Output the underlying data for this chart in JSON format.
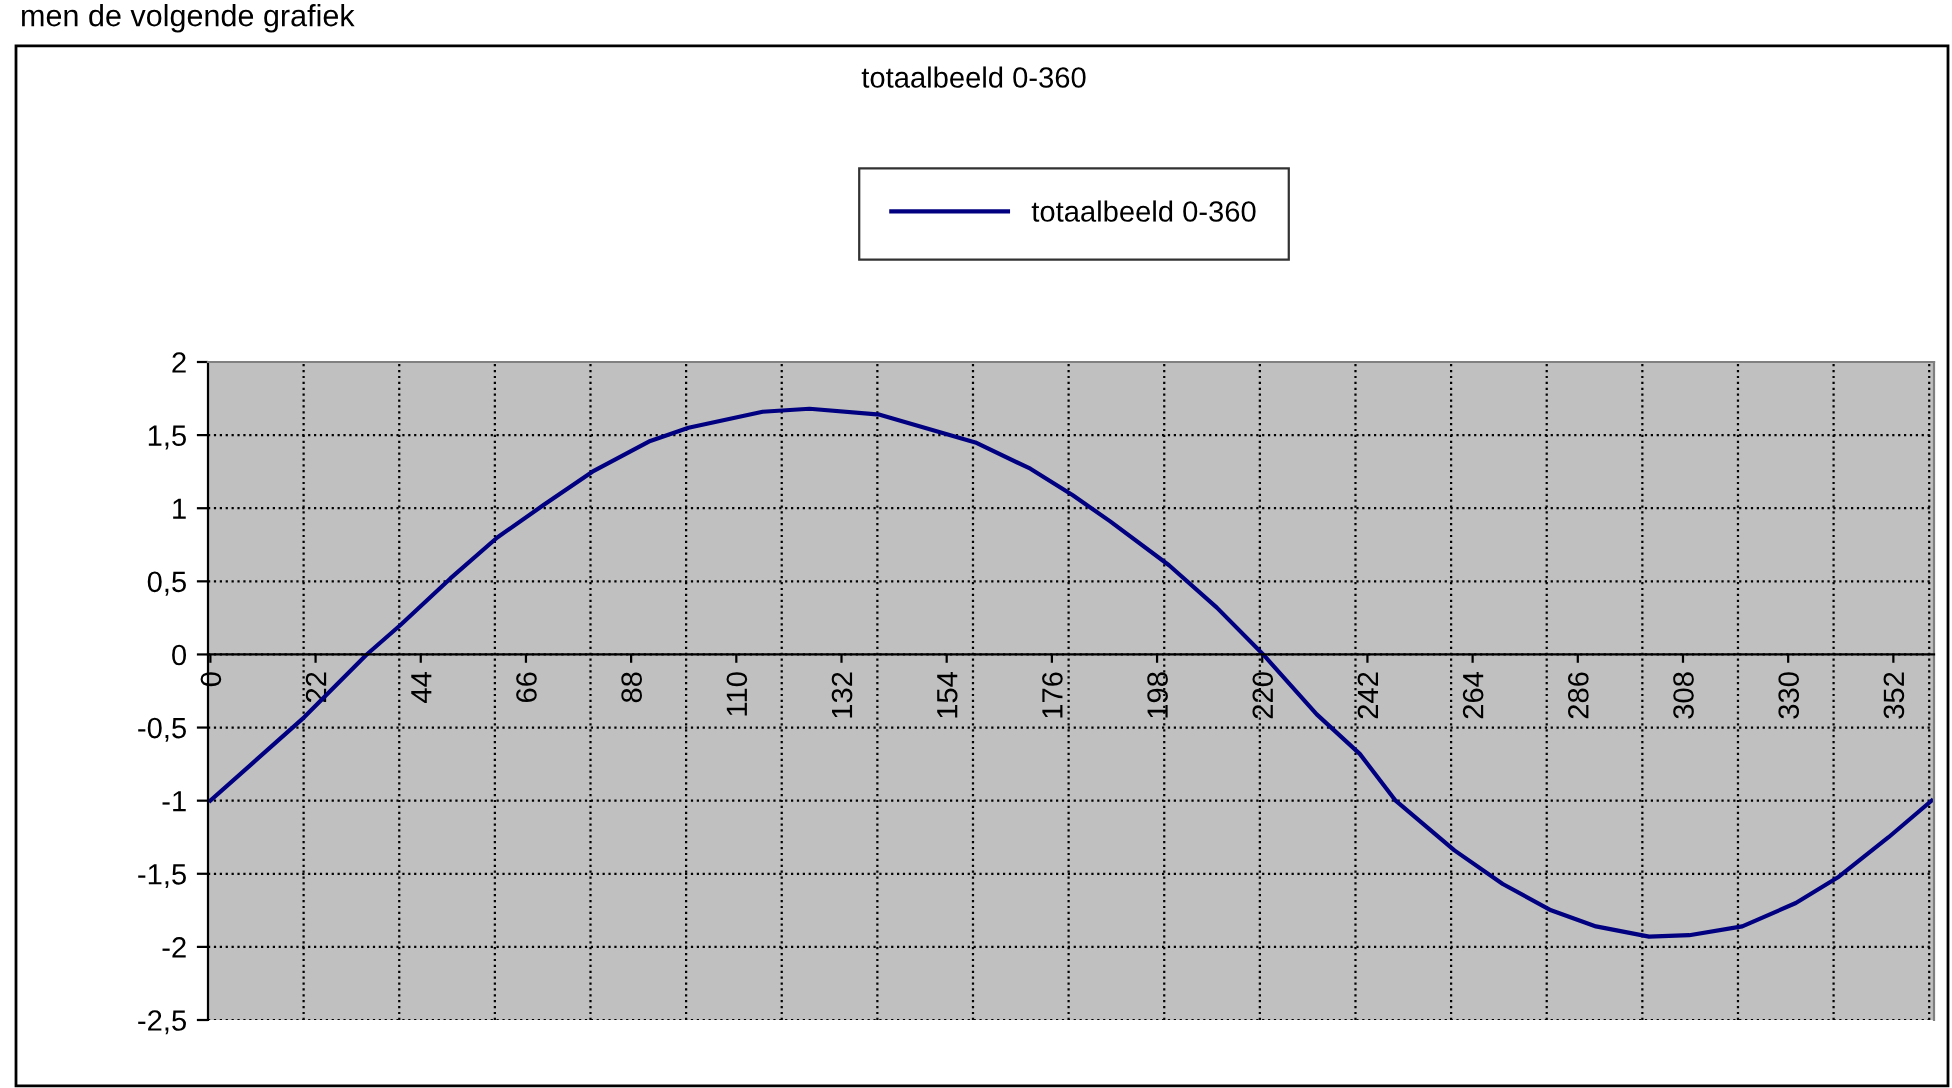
{
  "chart_data": {
    "type": "line",
    "title": "totaalbeeld 0-360",
    "annotations": [
      "men de volgende grafiek"
    ],
    "x": [
      0,
      19.6,
      32.7,
      39.7,
      50.2,
      60,
      69.6,
      79.9,
      92,
      100,
      115.5,
      125.3,
      140,
      160,
      171.5,
      180.3,
      188.2,
      200.5,
      210.5,
      220.2,
      231.4,
      240.4,
      247.9,
      260.2,
      270.3,
      280.4,
      289.8,
      300.9,
      309.3,
      320.4,
      331.6,
      340.6,
      351,
      360
    ],
    "series": [
      {
        "name": "totaalbeeld 0-360",
        "color": "#000080",
        "values": [
          -1.0,
          -0.43,
          0.0,
          0.2,
          0.52,
          0.8,
          1.02,
          1.25,
          1.46,
          1.55,
          1.66,
          1.68,
          1.64,
          1.45,
          1.27,
          1.09,
          0.91,
          0.61,
          0.32,
          0.0,
          -0.41,
          -0.68,
          -1.0,
          -1.34,
          -1.57,
          -1.75,
          -1.86,
          -1.93,
          -1.92,
          -1.86,
          -1.7,
          -1.52,
          -1.25,
          -1.0
        ]
      }
    ],
    "xlim": [
      -0.5,
      360.5
    ],
    "xticks": [
      0,
      {
        "value": 19.5,
        "label": null
      },
      22,
      {
        "value": 39.5,
        "label": null
      },
      44,
      {
        "value": 59.5,
        "label": null
      },
      66,
      {
        "value": 79.5,
        "label": null
      },
      88,
      {
        "value": 99.5,
        "label": null
      },
      110,
      {
        "value": 119.5,
        "label": null
      },
      132,
      {
        "value": 139.5,
        "label": null
      },
      154,
      {
        "value": 159.5,
        "label": null
      },
      176,
      {
        "value": 179.5,
        "label": null
      },
      198,
      {
        "value": 199.5,
        "label": null
      },
      220,
      {
        "value": 219.5,
        "label": null
      },
      242,
      {
        "value": 239.5,
        "label": null
      },
      264,
      {
        "value": 259.5,
        "label": null
      },
      286,
      {
        "value": 279.5,
        "label": null
      },
      308,
      {
        "value": 299.5,
        "label": null
      },
      330,
      {
        "value": 319.5,
        "label": null
      },
      {
        "value": 339.5,
        "label": null
      },
      352,
      {
        "value": 359.5,
        "label": null
      }
    ],
    "ylim": [
      -2.5,
      2
    ],
    "yticks": [
      {
        "value": -2.5,
        "label": "-2,5"
      },
      -2,
      {
        "value": -1.5,
        "label": "-1,5"
      },
      -1,
      {
        "value": -0.5,
        "label": "-0,5"
      },
      0,
      {
        "value": 0.5,
        "label": "0,5"
      },
      1,
      {
        "value": 1.5,
        "label": "1,5"
      },
      2
    ],
    "grid": true,
    "legend": "top",
    "marker": "none",
    "line_style": "solid"
  }
}
